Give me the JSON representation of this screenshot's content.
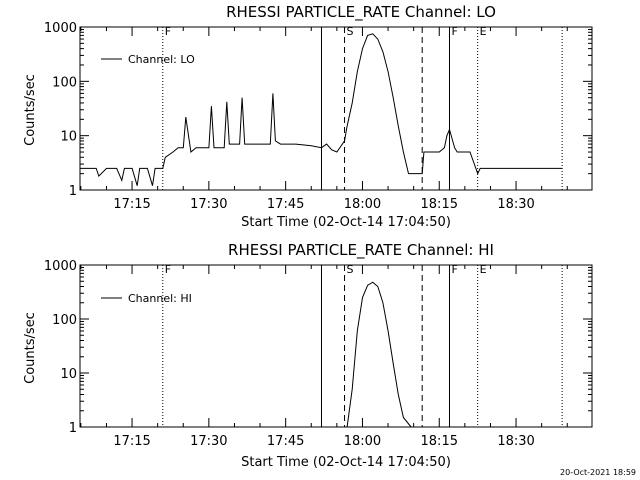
{
  "footer": {
    "timestamp": "20-Oct-2021 18:59"
  },
  "chart_data": [
    {
      "type": "line",
      "title": "RHESSI PARTICLE_RATE Channel: LO",
      "xlabel": "Start Time (02-Oct-14 17:04:50)",
      "ylabel": "Counts/sec",
      "legend": "Channel: LO",
      "legend_position": "top-left",
      "y_scale": "log",
      "xlim": [
        "17:04:50",
        "18:44:50"
      ],
      "ylim": [
        1,
        1000
      ],
      "x_ticks": [
        "17:15",
        "17:30",
        "17:45",
        "18:00",
        "18:15",
        "18:30"
      ],
      "y_ticks": [
        "1",
        "10",
        "100",
        "1000"
      ],
      "markers": [
        {
          "label": "F",
          "time": "17:21:00",
          "style": "dotted"
        },
        {
          "label": "",
          "time": "17:52:00",
          "style": "solid"
        },
        {
          "label": "S",
          "time": "17:56:30",
          "style": "dashed"
        },
        {
          "label": "",
          "time": "18:11:40",
          "style": "dashed"
        },
        {
          "label": "F",
          "time": "18:17:00",
          "style": "solid"
        },
        {
          "label": "E",
          "time": "18:22:30",
          "style": "dotted"
        },
        {
          "label": "",
          "time": "18:39:00",
          "style": "dotted"
        }
      ],
      "series": [
        {
          "name": "Channel: LO",
          "x": [
            "17:04:50",
            "17:08:00",
            "17:08:30",
            "17:10:00",
            "17:12:00",
            "17:13:00",
            "17:13:30",
            "17:15:00",
            "17:16:00",
            "17:16:30",
            "17:18:00",
            "17:19:00",
            "17:19:30",
            "17:21:00",
            "17:21:30",
            "17:23:00",
            "17:24:00",
            "17:25:00",
            "17:25:30",
            "17:26:30",
            "17:27:30",
            "17:30:00",
            "17:30:30",
            "17:31:00",
            "17:33:00",
            "17:33:30",
            "17:34:00",
            "17:36:00",
            "17:36:30",
            "17:37:00",
            "17:38:00",
            "17:40:00",
            "17:42:00",
            "17:42:30",
            "17:43:00",
            "17:44:00",
            "17:47:00",
            "17:50:00",
            "17:52:00",
            "17:53:00",
            "17:54:00",
            "17:55:00",
            "17:56:30",
            "17:57:00",
            "17:58:00",
            "17:59:00",
            "18:00:00",
            "18:01:00",
            "18:02:00",
            "18:03:00",
            "18:04:00",
            "18:05:00",
            "18:06:00",
            "18:07:00",
            "18:08:00",
            "18:09:00",
            "18:10:00",
            "18:11:40",
            "18:12:00",
            "18:13:00",
            "18:14:00",
            "18:15:00",
            "18:16:00",
            "18:16:30",
            "18:17:00",
            "18:18:00",
            "18:18:30",
            "18:19:00",
            "18:20:00",
            "18:21:00",
            "18:22:30",
            "18:23:00",
            "18:25:00",
            "18:28:00",
            "18:31:00",
            "18:34:00",
            "18:37:00",
            "18:39:00"
          ],
          "y": [
            2.5,
            2.5,
            1.8,
            2.5,
            2.5,
            1.5,
            2.5,
            2.5,
            1.2,
            2.5,
            2.5,
            1.2,
            2.5,
            2.5,
            4,
            5,
            6,
            6,
            22,
            5,
            6,
            6,
            35,
            6,
            6,
            42,
            7,
            7,
            50,
            7,
            7,
            7,
            7,
            60,
            8,
            7,
            7,
            6.5,
            6,
            7,
            5.5,
            5,
            8,
            15,
            40,
            150,
            400,
            700,
            750,
            600,
            350,
            150,
            50,
            15,
            5,
            2,
            2,
            2,
            5,
            5,
            5,
            5,
            6,
            10,
            13,
            6,
            5,
            5,
            5,
            5,
            2,
            2.5,
            2.5,
            2.5,
            2.5,
            2.5,
            2.5,
            2.5
          ]
        }
      ]
    },
    {
      "type": "line",
      "title": "RHESSI PARTICLE_RATE Channel: HI",
      "xlabel": "Start Time (02-Oct-14 17:04:50)",
      "ylabel": "Counts/sec",
      "legend": "Channel: HI",
      "legend_position": "top-left",
      "y_scale": "log",
      "xlim": [
        "17:04:50",
        "18:44:50"
      ],
      "ylim": [
        1,
        1000
      ],
      "x_ticks": [
        "17:15",
        "17:30",
        "17:45",
        "18:00",
        "18:15",
        "18:30"
      ],
      "y_ticks": [
        "1",
        "10",
        "100",
        "1000"
      ],
      "markers": [
        {
          "label": "F",
          "time": "17:21:00",
          "style": "dotted"
        },
        {
          "label": "",
          "time": "17:52:00",
          "style": "solid"
        },
        {
          "label": "S",
          "time": "17:56:30",
          "style": "dashed"
        },
        {
          "label": "",
          "time": "18:11:40",
          "style": "dashed"
        },
        {
          "label": "F",
          "time": "18:17:00",
          "style": "solid"
        },
        {
          "label": "E",
          "time": "18:22:30",
          "style": "dotted"
        },
        {
          "label": "",
          "time": "18:39:00",
          "style": "dotted"
        }
      ],
      "series": [
        {
          "name": "Channel: HI",
          "x": [
            "17:57:00",
            "17:58:00",
            "17:59:00",
            "18:00:00",
            "18:01:00",
            "18:02:00",
            "18:03:00",
            "18:04:00",
            "18:05:00",
            "18:06:00",
            "18:07:00",
            "18:08:00",
            "18:09:30"
          ],
          "y": [
            1,
            5,
            60,
            250,
            420,
            480,
            400,
            200,
            60,
            15,
            4,
            1.5,
            1
          ]
        }
      ]
    }
  ]
}
